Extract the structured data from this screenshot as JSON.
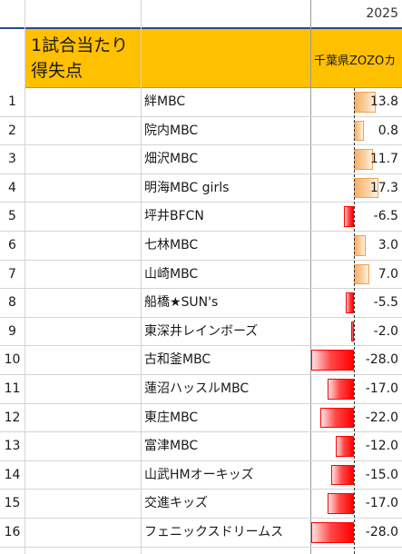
{
  "year": "2025",
  "header": {
    "title": "1試合当たり\n得失点",
    "column": "千葉県ZOZOカ"
  },
  "colors": {
    "header_band": "#ffc000",
    "positive_bar": "#f5b06a",
    "negative_bar": "#ff0000"
  },
  "rows": [
    {
      "rank": "1",
      "team": "絆MBC",
      "value": "13.8"
    },
    {
      "rank": "2",
      "team": "院内MBC",
      "value": "0.8"
    },
    {
      "rank": "3",
      "team": "畑沢MBC",
      "value": "11.7"
    },
    {
      "rank": "4",
      "team": "明海MBC girls",
      "value": "17.3"
    },
    {
      "rank": "5",
      "team": "坪井BFCN",
      "value": "-6.5"
    },
    {
      "rank": "6",
      "team": "七林MBC",
      "value": "3.0"
    },
    {
      "rank": "7",
      "team": "山崎MBC",
      "value": "7.0"
    },
    {
      "rank": "8",
      "team": "船橋★SUN's",
      "value": "-5.5"
    },
    {
      "rank": "9",
      "team": "東深井レインボーズ",
      "value": "-2.0"
    },
    {
      "rank": "10",
      "team": "古和釜MBC",
      "value": "-28.0"
    },
    {
      "rank": "11",
      "team": "蓮沼ハッスルMBC",
      "value": "-17.0"
    },
    {
      "rank": "12",
      "team": "東庄MBC",
      "value": "-22.0"
    },
    {
      "rank": "13",
      "team": "富津MBC",
      "value": "-12.0"
    },
    {
      "rank": "14",
      "team": "山武HMオーキッズ",
      "value": "-15.0"
    },
    {
      "rank": "15",
      "team": "交進キッズ",
      "value": "-17.0"
    },
    {
      "rank": "16",
      "team": "フェニックスドリームス",
      "value": "-28.0"
    }
  ]
}
